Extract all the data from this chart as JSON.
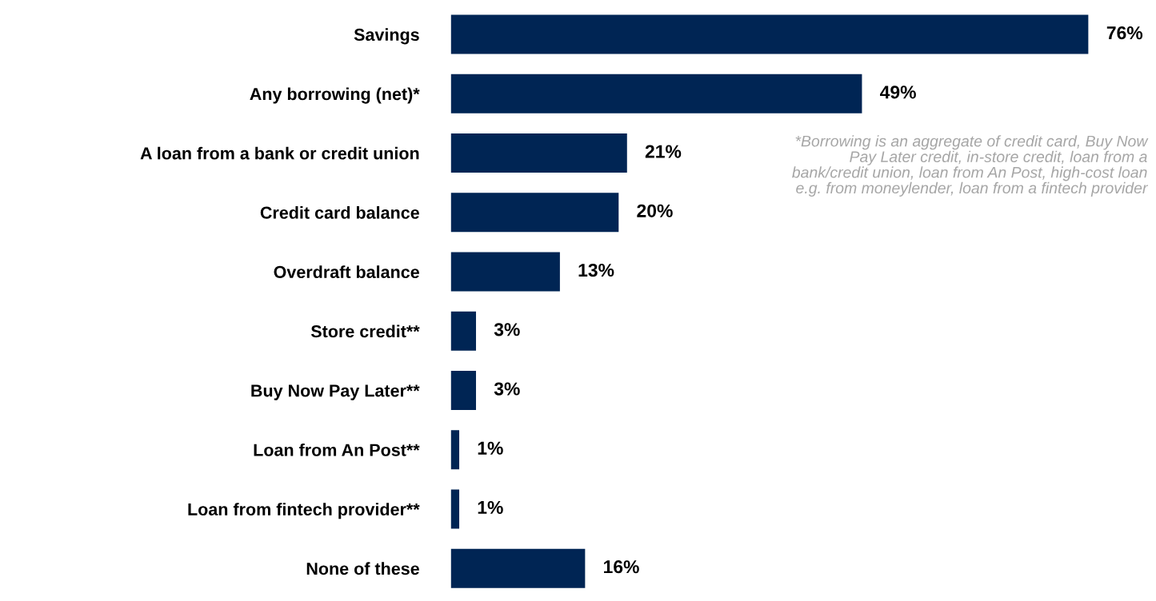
{
  "chart_data": {
    "type": "bar",
    "orientation": "horizontal",
    "categories": [
      "Savings",
      "Any borrowing (net)*",
      "A loan from a bank or credit union",
      "Credit card balance",
      "Overdraft balance",
      "Store credit**",
      "Buy Now Pay Later**",
      "Loan from An Post**",
      "Loan from fintech provider**",
      "None of these"
    ],
    "values": [
      76,
      49,
      21,
      20,
      13,
      3,
      3,
      1,
      1,
      16
    ],
    "value_labels": [
      "76%",
      "49%",
      "21%",
      "20%",
      "13%",
      "3%",
      "3%",
      "1%",
      "1%",
      "16%"
    ],
    "color": "#002554",
    "annotations": [
      "*Borrowing is an aggregate of credit card, Buy Now Pay Later credit, in-store credit, loan from a bank/credit union, loan from An Post, high-cost loan e.g. from moneylender, loan from a fintech provider"
    ],
    "grid": false,
    "legend": false,
    "tick_labels": "y"
  }
}
